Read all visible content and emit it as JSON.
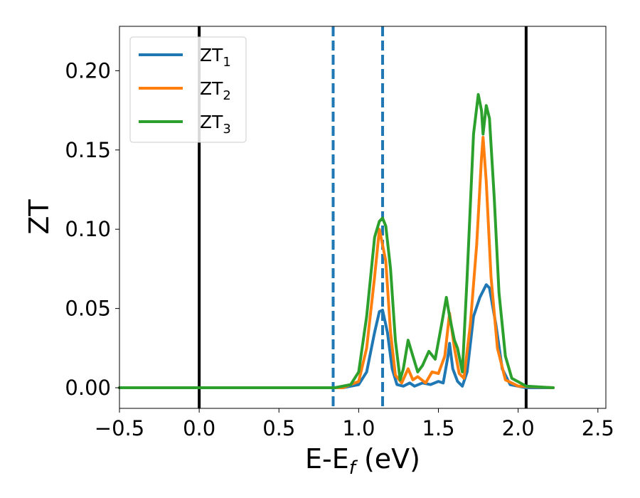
{
  "chart_data": {
    "type": "line",
    "title": "",
    "xlabel": {
      "main": "E-E",
      "sub": "f",
      "tail": " (eV)"
    },
    "ylabel": "ZT",
    "xlim": [
      -0.5,
      2.55
    ],
    "ylim": [
      -0.013,
      0.228
    ],
    "xticks": [
      {
        "v": -0.5,
        "label": "−0.5"
      },
      {
        "v": 0.0,
        "label": "0.0"
      },
      {
        "v": 0.5,
        "label": "0.5"
      },
      {
        "v": 1.0,
        "label": "1.0"
      },
      {
        "v": 1.5,
        "label": "1.5"
      },
      {
        "v": 2.0,
        "label": "2.0"
      },
      {
        "v": 2.5,
        "label": "2.5"
      }
    ],
    "yticks": [
      {
        "v": 0.0,
        "label": "0.00"
      },
      {
        "v": 0.05,
        "label": "0.05"
      },
      {
        "v": 0.1,
        "label": "0.10"
      },
      {
        "v": 0.15,
        "label": "0.15"
      },
      {
        "v": 0.2,
        "label": "0.20"
      }
    ],
    "grid": false,
    "legend_position": "top-left",
    "vlines": [
      {
        "x": 0.0,
        "style": "solid",
        "color": "#000000"
      },
      {
        "x": 2.05,
        "style": "solid",
        "color": "#000000"
      },
      {
        "x": 0.84,
        "style": "dashed",
        "color": "#1f77b4"
      },
      {
        "x": 1.15,
        "style": "dashed",
        "color": "#1f77b4"
      }
    ],
    "series": [
      {
        "name": "ZT",
        "sub": "1",
        "color": "#1f77b4",
        "points": [
          [
            -0.5,
            0
          ],
          [
            0.9,
            0
          ],
          [
            1.0,
            0.002
          ],
          [
            1.05,
            0.01
          ],
          [
            1.1,
            0.035
          ],
          [
            1.13,
            0.048
          ],
          [
            1.15,
            0.049
          ],
          [
            1.18,
            0.035
          ],
          [
            1.21,
            0.012
          ],
          [
            1.24,
            0.002
          ],
          [
            1.28,
            0.001
          ],
          [
            1.32,
            0.003
          ],
          [
            1.35,
            0.001
          ],
          [
            1.4,
            0.003
          ],
          [
            1.45,
            0.002
          ],
          [
            1.5,
            0.004
          ],
          [
            1.53,
            0.003
          ],
          [
            1.56,
            0.02
          ],
          [
            1.57,
            0.028
          ],
          [
            1.59,
            0.012
          ],
          [
            1.62,
            0.004
          ],
          [
            1.65,
            0.001
          ],
          [
            1.68,
            0.01
          ],
          [
            1.72,
            0.045
          ],
          [
            1.76,
            0.057
          ],
          [
            1.8,
            0.065
          ],
          [
            1.82,
            0.063
          ],
          [
            1.86,
            0.04
          ],
          [
            1.9,
            0.012
          ],
          [
            1.95,
            0.002
          ],
          [
            2.05,
            0.0
          ],
          [
            2.22,
            0.0
          ]
        ]
      },
      {
        "name": "ZT",
        "sub": "2",
        "color": "#ff7f0e",
        "points": [
          [
            -0.5,
            0
          ],
          [
            0.9,
            0
          ],
          [
            1.0,
            0.004
          ],
          [
            1.05,
            0.025
          ],
          [
            1.1,
            0.07
          ],
          [
            1.13,
            0.1
          ],
          [
            1.14,
            0.095
          ],
          [
            1.17,
            0.08
          ],
          [
            1.2,
            0.035
          ],
          [
            1.23,
            0.008
          ],
          [
            1.27,
            0.003
          ],
          [
            1.31,
            0.012
          ],
          [
            1.34,
            0.005
          ],
          [
            1.37,
            0.007
          ],
          [
            1.42,
            0.003
          ],
          [
            1.46,
            0.01
          ],
          [
            1.5,
            0.009
          ],
          [
            1.54,
            0.02
          ],
          [
            1.57,
            0.047
          ],
          [
            1.6,
            0.025
          ],
          [
            1.63,
            0.009
          ],
          [
            1.66,
            0.006
          ],
          [
            1.7,
            0.04
          ],
          [
            1.74,
            0.09
          ],
          [
            1.77,
            0.145
          ],
          [
            1.78,
            0.158
          ],
          [
            1.8,
            0.13
          ],
          [
            1.83,
            0.07
          ],
          [
            1.87,
            0.025
          ],
          [
            1.92,
            0.005
          ],
          [
            2.0,
            0.001
          ],
          [
            2.22,
            0.0
          ]
        ]
      },
      {
        "name": "ZT",
        "sub": "3",
        "color": "#2ca02c",
        "points": [
          [
            -0.5,
            0
          ],
          [
            0.85,
            0
          ],
          [
            0.95,
            0.002
          ],
          [
            1.0,
            0.01
          ],
          [
            1.05,
            0.045
          ],
          [
            1.1,
            0.095
          ],
          [
            1.13,
            0.105
          ],
          [
            1.15,
            0.107
          ],
          [
            1.17,
            0.102
          ],
          [
            1.2,
            0.075
          ],
          [
            1.23,
            0.03
          ],
          [
            1.26,
            0.005
          ],
          [
            1.28,
            0.012
          ],
          [
            1.31,
            0.03
          ],
          [
            1.34,
            0.02
          ],
          [
            1.37,
            0.01
          ],
          [
            1.4,
            0.014
          ],
          [
            1.44,
            0.023
          ],
          [
            1.48,
            0.018
          ],
          [
            1.52,
            0.04
          ],
          [
            1.55,
            0.057
          ],
          [
            1.57,
            0.045
          ],
          [
            1.6,
            0.03
          ],
          [
            1.62,
            0.025
          ],
          [
            1.65,
            0.01
          ],
          [
            1.68,
            0.07
          ],
          [
            1.72,
            0.16
          ],
          [
            1.75,
            0.185
          ],
          [
            1.77,
            0.175
          ],
          [
            1.78,
            0.16
          ],
          [
            1.8,
            0.178
          ],
          [
            1.82,
            0.17
          ],
          [
            1.85,
            0.12
          ],
          [
            1.88,
            0.06
          ],
          [
            1.92,
            0.02
          ],
          [
            1.96,
            0.006
          ],
          [
            2.05,
            0.001
          ],
          [
            2.22,
            0.0
          ]
        ]
      }
    ]
  }
}
